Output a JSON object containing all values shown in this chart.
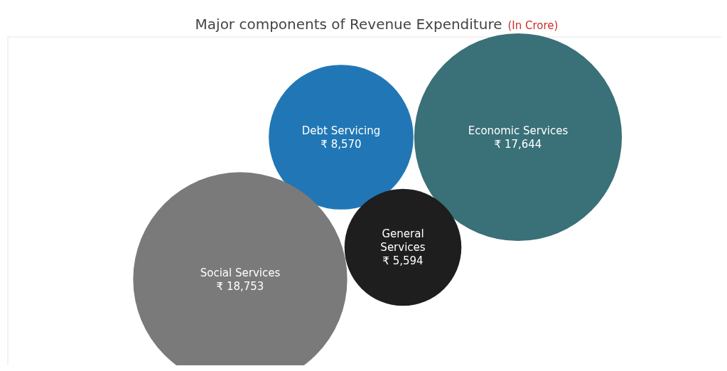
{
  "chart_data": {
    "type": "other",
    "title": "Major components of Revenue Expenditure",
    "subtitle": "(In Crore)",
    "categories": [
      "Debt Servicing",
      "Economic Services",
      "General Services",
      "Social Services"
    ],
    "values": [
      8570,
      17644,
      5594,
      18753
    ],
    "value_labels": [
      "₹ 8,570",
      "₹ 17,644",
      "₹ 5,594",
      "₹ 18,753"
    ],
    "colors": [
      "#2177b5",
      "#3a7078",
      "#1e1e1e",
      "#7a7a7a"
    ]
  }
}
